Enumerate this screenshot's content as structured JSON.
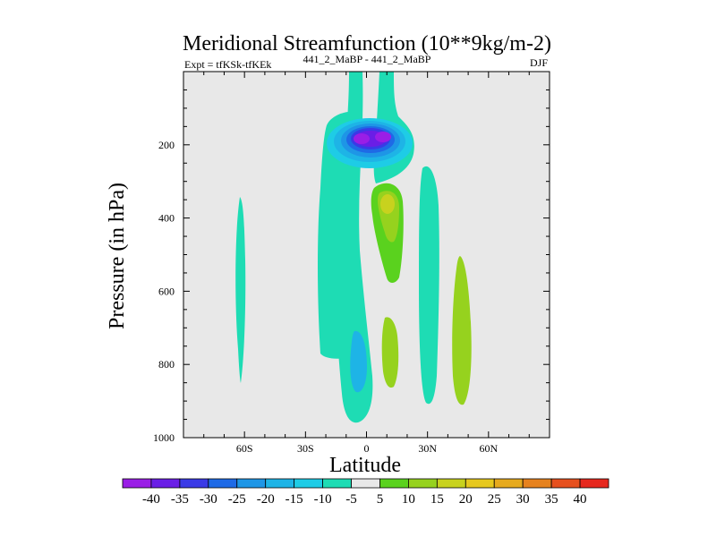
{
  "chart_data": {
    "type": "contour",
    "title": "Meridional Streamfunction (10**9kg/m-2)",
    "subtitle_left": "Expt = tfKSk-tfKEk",
    "subtitle_center": "441_2_MaBP - 441_2_MaBP",
    "subtitle_right": "DJF",
    "xlabel": "Latitude",
    "ylabel": "Pressure (in hPa)",
    "xlim": [
      -90,
      90
    ],
    "ylim": [
      1000,
      0
    ],
    "x_ticks": [
      {
        "value": -60,
        "label": "60S"
      },
      {
        "value": -30,
        "label": "30S"
      },
      {
        "value": 0,
        "label": "0"
      },
      {
        "value": 30,
        "label": "30N"
      },
      {
        "value": 60,
        "label": "60N"
      }
    ],
    "y_ticks": [
      {
        "value": 200,
        "label": "200"
      },
      {
        "value": 400,
        "label": "400"
      },
      {
        "value": 600,
        "label": "600"
      },
      {
        "value": 800,
        "label": "800"
      },
      {
        "value": 1000,
        "label": "1000"
      }
    ],
    "colorbar": {
      "labels": [
        "-40",
        "-35",
        "-30",
        "-25",
        "-20",
        "-15",
        "-10",
        "-5",
        "5",
        "10",
        "15",
        "20",
        "25",
        "30",
        "35",
        "40"
      ],
      "colors": [
        "#9a1ee6",
        "#6a1ee6",
        "#3a3ae6",
        "#1e6ae6",
        "#1e96e6",
        "#1eb4e6",
        "#1ecce6",
        "#1edcb4",
        "#e8e8e8",
        "#5ad21e",
        "#96d21e",
        "#c8d21e",
        "#e6c81e",
        "#e6aa1e",
        "#e6821e",
        "#e6501e",
        "#e6281e"
      ]
    },
    "background_color": "#e8e8e8",
    "contour_regions": [
      {
        "name": "south-65-band",
        "level": -5,
        "lat_range": [
          -64,
          -59
        ],
        "p_range": [
          340,
          850
        ]
      },
      {
        "name": "column-west",
        "level": -5,
        "lat_range": [
          -22,
          -10
        ],
        "p_range": [
          210,
          800
        ]
      },
      {
        "name": "column-equatorial-west",
        "level": -5,
        "lat_range": [
          -10,
          0
        ],
        "p_range": [
          0,
          960
        ]
      },
      {
        "name": "column-equatorial-east",
        "level": -5,
        "lat_range": [
          2,
          12
        ],
        "p_range": [
          0,
          260
        ]
      },
      {
        "name": "upper-max",
        "level": -40,
        "lat_range": [
          -5,
          10
        ],
        "p_range": [
          150,
          210
        ]
      },
      {
        "name": "mid-positive",
        "level": 20,
        "lat_range": [
          5,
          18
        ],
        "p_range": [
          280,
          560
        ]
      },
      {
        "name": "lower-positive",
        "level": 10,
        "lat_range": [
          9,
          15
        ],
        "p_range": [
          650,
          860
        ]
      },
      {
        "name": "north-30-band",
        "level": -5,
        "lat_range": [
          27,
          35
        ],
        "p_range": [
          250,
          920
        ]
      },
      {
        "name": "north-45-band",
        "level": 10,
        "lat_range": [
          44,
          52
        ],
        "p_range": [
          500,
          900
        ]
      }
    ]
  }
}
